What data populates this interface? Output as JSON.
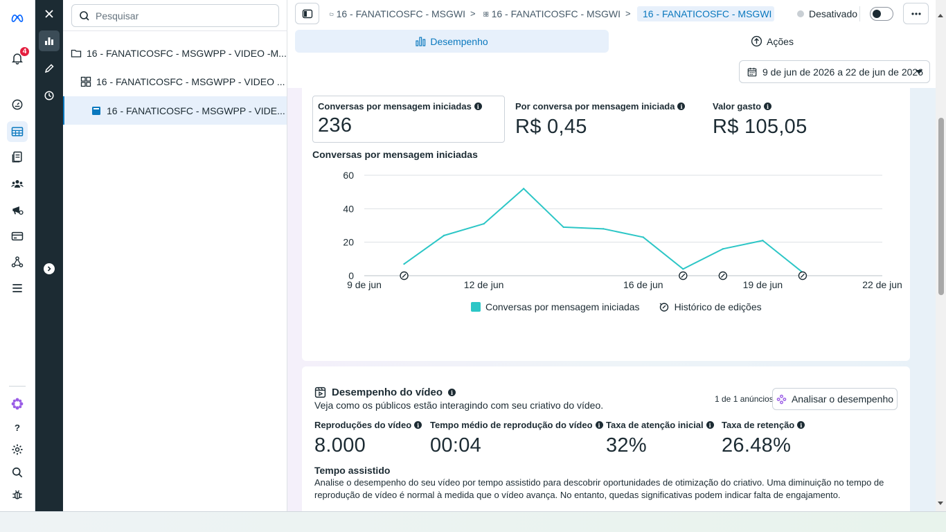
{
  "rail": {
    "notifications_count": "4",
    "icons": [
      "meta-logo-icon",
      "bell-icon",
      "dashboard-icon",
      "table-icon",
      "pages-icon",
      "audience-icon",
      "ad-settings-icon",
      "billing-icon",
      "connections-icon",
      "menu-icon",
      "meta-ai-icon",
      "help-icon",
      "settings-icon",
      "search-icon",
      "bug-icon"
    ]
  },
  "tree": {
    "search_placeholder": "Pesquisar",
    "items": [
      {
        "label": "16 - FANATICOSFC - MSGWPP - VIDEO -M...",
        "type": "campaign"
      },
      {
        "label": "16 - FANATICOSFC - MSGWPP - VIDEO ...",
        "type": "adset"
      },
      {
        "label": "16 - FANATICOSFC - MSGWPP - VIDE...",
        "type": "ad"
      }
    ]
  },
  "breadcrumb": {
    "items": [
      "16 - FANATICOSFC - MSGWI",
      "16 - FANATICOSFC - MSGWI",
      "16 - FANATICOSFC - MSGWI"
    ]
  },
  "status": {
    "label": "Desativado",
    "enabled": false
  },
  "tabs": {
    "performance": "Desempenho",
    "actions": "Ações"
  },
  "date_range": "9 de jun de 2026 a 22 de jun de 2026",
  "metrics": [
    {
      "label": "Conversas por mensagem iniciadas",
      "value": "236"
    },
    {
      "label": "Por conversa por mensagem iniciada",
      "value": "R$ 0,45"
    },
    {
      "label": "Valor gasto",
      "value": "R$ 105,05"
    }
  ],
  "chart_data": {
    "type": "line",
    "title": "Conversas por mensagem iniciadas",
    "x_ticks": [
      "9 de jun",
      "12 de jun",
      "16 de jun",
      "19 de jun",
      "22 de jun"
    ],
    "x_domain": [
      "2026-06-09",
      "2026-06-22"
    ],
    "ylim": [
      0,
      60
    ],
    "y_ticks": [
      0,
      20,
      40,
      60
    ],
    "grid": true,
    "series": [
      {
        "name": "Conversas por mensagem iniciadas",
        "color": "#2cc6c6",
        "points": [
          {
            "x": "2026-06-10",
            "y": 7
          },
          {
            "x": "2026-06-11",
            "y": 24
          },
          {
            "x": "2026-06-12",
            "y": 31
          },
          {
            "x": "2026-06-13",
            "y": 52
          },
          {
            "x": "2026-06-14",
            "y": 29
          },
          {
            "x": "2026-06-15",
            "y": 28
          },
          {
            "x": "2026-06-16",
            "y": 23
          },
          {
            "x": "2026-06-17",
            "y": 4
          },
          {
            "x": "2026-06-18",
            "y": 16
          },
          {
            "x": "2026-06-19",
            "y": 21
          },
          {
            "x": "2026-06-20",
            "y": 2
          }
        ]
      }
    ],
    "edit_markers": [
      "2026-06-10",
      "2026-06-17",
      "2026-06-18",
      "2026-06-20"
    ],
    "legend": [
      "Conversas por mensagem iniciadas",
      "Histórico de edições"
    ],
    "legend_position": "bottom"
  },
  "video": {
    "title": "Desempenho do vídeo",
    "subtitle": "Veja como os públicos estão interagindo com seu criativo do vídeo.",
    "ad_count": "1 de 1 anúncios",
    "analyze_button": "Analisar o desempenho",
    "metrics": [
      {
        "label": "Reproduções do vídeo",
        "value": "8.000"
      },
      {
        "label": "Tempo médio de reprodução do vídeo",
        "value": "00:04"
      },
      {
        "label": "Taxa de atenção inicial",
        "value": "32%"
      },
      {
        "label": "Taxa de retenção",
        "value": "26.48%"
      }
    ],
    "watch_title": "Tempo assistido",
    "watch_desc": "Analise o desempenho do seu vídeo por tempo assistido para descobrir oportunidades de otimização do criativo. Uma diminuição no tempo de reprodução de vídeo é normal à medida que o vídeo avança. No entanto, quedas significativas podem indicar falta de engajamento."
  }
}
